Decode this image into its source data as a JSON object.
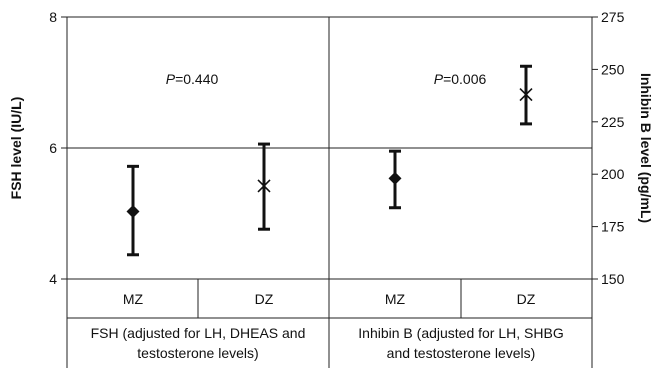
{
  "chart_data": {
    "type": "scatter",
    "y_left": {
      "label": "FSH level (IU/L)",
      "range": [
        4,
        8
      ],
      "ticks": [
        "4",
        "6",
        "8"
      ]
    },
    "y_right": {
      "label": "Inhibin B level (pg/mL)",
      "range": [
        150,
        275
      ],
      "ticks": [
        "150",
        "175",
        "200",
        "225",
        "250",
        "275"
      ]
    },
    "grid": "horizontal line at FSH 6; vertical line between panels",
    "panels": [
      {
        "group_label_lines": [
          "FSH (adjusted for LH, DHEAS and",
          "testosterone levels)"
        ],
        "p_value": "0.440",
        "axis": "left",
        "points": [
          {
            "category": "MZ",
            "marker": "diamond",
            "value": 5.03,
            "lower": 4.37,
            "upper": 5.72
          },
          {
            "category": "DZ",
            "marker": "x",
            "value": 5.42,
            "lower": 4.76,
            "upper": 6.06
          }
        ]
      },
      {
        "group_label_lines": [
          "Inhibin B (adjusted for LH, SHBG",
          "and testosterone levels)"
        ],
        "p_value": "0.006",
        "axis": "right",
        "points": [
          {
            "category": "MZ",
            "marker": "diamond",
            "value": 198,
            "lower": 184,
            "upper": 211
          },
          {
            "category": "DZ",
            "marker": "x",
            "value": 238,
            "lower": 224,
            "upper": 251.5
          }
        ]
      }
    ]
  }
}
